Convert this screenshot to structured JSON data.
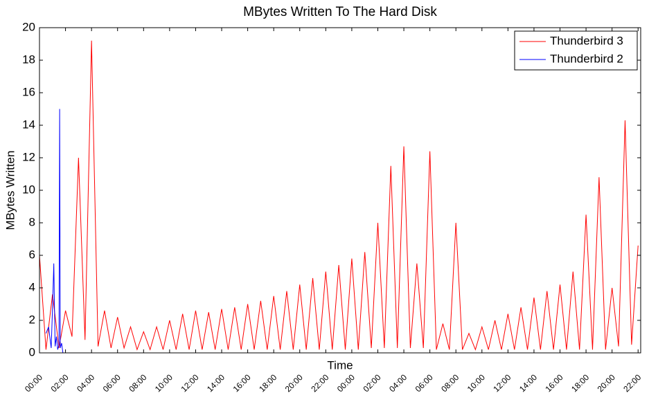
{
  "chart_data": {
    "type": "line",
    "title": "MBytes Written To The Hard Disk",
    "x_label": "Time",
    "y_label": "MBytes Written",
    "xlim": [
      0,
      46.2
    ],
    "ylim": [
      0,
      20
    ],
    "yticks": [
      0,
      2,
      4,
      6,
      8,
      10,
      12,
      14,
      16,
      18,
      20
    ],
    "xticks": [
      {
        "value": 0,
        "label": "00:00"
      },
      {
        "value": 2,
        "label": "02:00"
      },
      {
        "value": 4,
        "label": "04:00"
      },
      {
        "value": 6,
        "label": "06:00"
      },
      {
        "value": 8,
        "label": "08:00"
      },
      {
        "value": 10,
        "label": "10:00"
      },
      {
        "value": 12,
        "label": "12:00"
      },
      {
        "value": 14,
        "label": "14:00"
      },
      {
        "value": 16,
        "label": "16:00"
      },
      {
        "value": 18,
        "label": "18:00"
      },
      {
        "value": 20,
        "label": "20:00"
      },
      {
        "value": 22,
        "label": "22:00"
      },
      {
        "value": 24,
        "label": "00:00"
      },
      {
        "value": 26,
        "label": "02:00"
      },
      {
        "value": 28,
        "label": "04:00"
      },
      {
        "value": 30,
        "label": "06:00"
      },
      {
        "value": 32,
        "label": "08:00"
      },
      {
        "value": 34,
        "label": "10:00"
      },
      {
        "value": 36,
        "label": "12:00"
      },
      {
        "value": 38,
        "label": "14:00"
      },
      {
        "value": 40,
        "label": "16:00"
      },
      {
        "value": 42,
        "label": "18:00"
      },
      {
        "value": 44,
        "label": "20:00"
      },
      {
        "value": 46,
        "label": "22:00"
      }
    ],
    "legend_position": "upper right",
    "series": [
      {
        "name": "Thunderbird 3",
        "color": "#ff0000",
        "x": [
          0,
          0.5,
          1,
          1.5,
          2,
          2.5,
          3,
          3.5,
          4,
          4.5,
          5,
          5.5,
          6,
          6.5,
          7,
          7.5,
          8,
          8.5,
          9,
          9.5,
          10,
          10.5,
          11,
          11.5,
          12,
          12.5,
          13,
          13.5,
          14,
          14.5,
          15,
          15.5,
          16,
          16.5,
          17,
          17.5,
          18,
          18.5,
          19,
          19.5,
          20,
          20.5,
          21,
          21.5,
          22,
          22.5,
          23,
          23.5,
          24,
          24.5,
          25,
          25.5,
          26,
          26.5,
          27,
          27.5,
          28,
          28.5,
          29,
          29.5,
          30,
          30.5,
          31,
          31.5,
          32,
          32.5,
          33,
          33.5,
          34,
          34.5,
          35,
          35.5,
          36,
          36.5,
          37,
          37.5,
          38,
          38.5,
          39,
          39.5,
          40,
          40.5,
          41,
          41.5,
          42,
          42.5,
          43,
          43.5,
          44,
          44.5,
          45,
          45.5,
          46
        ],
        "values": [
          6.0,
          0.2,
          3.6,
          0.3,
          2.6,
          1.0,
          12.0,
          0.8,
          19.2,
          0.4,
          2.6,
          0.3,
          2.2,
          0.3,
          1.6,
          0.2,
          1.3,
          0.2,
          1.6,
          0.2,
          2.0,
          0.2,
          2.4,
          0.2,
          2.6,
          0.2,
          2.5,
          0.2,
          2.7,
          0.2,
          2.8,
          0.2,
          3.0,
          0.2,
          3.2,
          0.2,
          3.5,
          0.2,
          3.8,
          0.2,
          4.2,
          0.2,
          4.6,
          0.2,
          5.0,
          0.2,
          5.4,
          0.2,
          5.8,
          0.2,
          6.2,
          0.3,
          8.0,
          0.3,
          11.5,
          0.3,
          12.7,
          0.3,
          5.5,
          0.3,
          12.4,
          0.2,
          1.8,
          0.2,
          8.0,
          0.2,
          1.2,
          0.2,
          1.6,
          0.2,
          2.0,
          0.2,
          2.4,
          0.2,
          2.8,
          0.2,
          3.4,
          0.2,
          3.8,
          0.2,
          4.2,
          0.2,
          5.0,
          0.2,
          8.5,
          0.2,
          10.8,
          0.2,
          4.0,
          0.4,
          14.3,
          0.5,
          6.6
        ]
      },
      {
        "name": "Thunderbird 2",
        "color": "#0000ff",
        "x": [
          0.5,
          0.7,
          0.9,
          1.0,
          1.1,
          1.2,
          1.3,
          1.4,
          1.5,
          1.55,
          1.6,
          1.7,
          1.8
        ],
        "values": [
          1.2,
          1.6,
          0.3,
          2.7,
          5.5,
          0.4,
          1.0,
          0.2,
          0.5,
          15.0,
          0.3,
          0.6,
          0.0
        ]
      }
    ]
  }
}
